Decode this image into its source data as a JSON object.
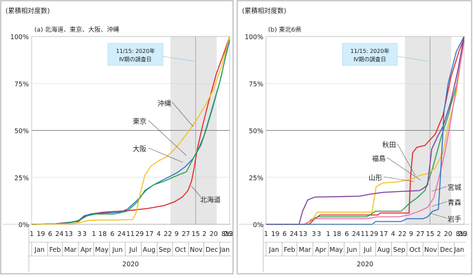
{
  "charts": [
    {
      "ylabel": "(累積相対度数)",
      "title": "(a) 北海道、東京、大阪、沖縄",
      "ticks_y": [
        "0%",
        "25%",
        "50%",
        "75%",
        "100%"
      ],
      "tick_labels_x": [
        "1",
        "19",
        "6",
        "24",
        "13",
        "3",
        "3",
        "1",
        "18",
        "6",
        "24",
        "11",
        "29",
        "17",
        "4",
        "22",
        "9",
        "27",
        "15",
        "2",
        "20",
        "8",
        "26",
        "13"
      ],
      "month_labels": [
        "Jan",
        "Feb",
        "Mar",
        "Apr",
        "May",
        "Jun",
        "Jul",
        "Aug",
        "Sep",
        "Oct",
        "Nov",
        "Dec",
        "Jan"
      ],
      "year_label": "2020",
      "callout_lines": [
        "11/15: 2020年",
        "Ⅳ期の調査日"
      ],
      "series_labels": [
        "沖縄",
        "東京",
        "大阪",
        "北海道"
      ]
    },
    {
      "ylabel": "(累積相対度数)",
      "title": "(b) 東北6県",
      "ticks_y": [
        "0%",
        "25%",
        "50%",
        "75%",
        "100%"
      ],
      "tick_labels_x": [
        "1",
        "19",
        "6",
        "24",
        "13",
        "3",
        "3",
        "1",
        "18",
        "6",
        "24",
        "11",
        "29",
        "17",
        "4",
        "22",
        "9",
        "27",
        "15",
        "2",
        "20",
        "8",
        "26",
        "13"
      ],
      "month_labels": [
        "Jan",
        "Feb",
        "Mar",
        "Apr",
        "May",
        "Jun",
        "Jul",
        "Aug",
        "Sep",
        "Oct",
        "Nov",
        "Dec",
        "Jan"
      ],
      "year_label": "2020",
      "callout_lines": [
        "11/15: 2020年",
        "Ⅳ期の調査日"
      ],
      "series_labels": [
        "秋田",
        "福島",
        "山形",
        "宮城",
        "青森",
        "岩手"
      ]
    }
  ],
  "chart_data": [
    {
      "type": "line",
      "title": "(a) 北海道、東京、大阪、沖縄",
      "ylabel": "(累積相対度数)",
      "ylim": [
        0,
        100
      ],
      "xlim": [
        "2020-01-01",
        "2021-01-20"
      ],
      "shaded_period": [
        "2020-09-27",
        "2020-12-26"
      ],
      "vline": "2020-11-15",
      "hline": 50,
      "series": [
        {
          "name": "北海道",
          "color": "#e02020",
          "points": [
            [
              "2020-01-01",
              0
            ],
            [
              "2020-02-15",
              0.3
            ],
            [
              "2020-03-10",
              1
            ],
            [
              "2020-04-01",
              1.5
            ],
            [
              "2020-04-12",
              4
            ],
            [
              "2020-04-25",
              5.5
            ],
            [
              "2020-05-20",
              6.5
            ],
            [
              "2020-06-20",
              7
            ],
            [
              "2020-07-15",
              7.5
            ],
            [
              "2020-08-15",
              8.5
            ],
            [
              "2020-09-15",
              10
            ],
            [
              "2020-10-05",
              12
            ],
            [
              "2020-10-20",
              14.5
            ],
            [
              "2020-10-31",
              18
            ],
            [
              "2020-11-07",
              23
            ],
            [
              "2020-11-12",
              30
            ],
            [
              "2020-11-18",
              40
            ],
            [
              "2020-11-28",
              52
            ],
            [
              "2020-12-10",
              65
            ],
            [
              "2020-12-25",
              80
            ],
            [
              "2021-01-10",
              92
            ],
            [
              "2021-01-20",
              100
            ]
          ]
        },
        {
          "name": "東京",
          "color": "#2f6fc8",
          "points": [
            [
              "2020-01-01",
              0
            ],
            [
              "2020-02-20",
              0.3
            ],
            [
              "2020-03-15",
              1
            ],
            [
              "2020-04-01",
              2
            ],
            [
              "2020-04-12",
              4.5
            ],
            [
              "2020-04-25",
              5.5
            ],
            [
              "2020-05-20",
              6
            ],
            [
              "2020-06-20",
              6.5
            ],
            [
              "2020-07-05",
              8
            ],
            [
              "2020-07-25",
              13
            ],
            [
              "2020-08-10",
              18
            ],
            [
              "2020-08-25",
              21
            ],
            [
              "2020-09-15",
              24
            ],
            [
              "2020-10-10",
              27.5
            ],
            [
              "2020-10-25",
              30.5
            ],
            [
              "2020-11-10",
              35
            ],
            [
              "2020-11-20",
              40
            ],
            [
              "2020-12-01",
              47
            ],
            [
              "2020-12-15",
              60
            ],
            [
              "2021-01-01",
              76
            ],
            [
              "2021-01-12",
              89
            ],
            [
              "2021-01-20",
              98
            ]
          ]
        },
        {
          "name": "大阪",
          "color": "#22a050",
          "points": [
            [
              "2020-01-01",
              0
            ],
            [
              "2020-02-25",
              0.3
            ],
            [
              "2020-03-20",
              1
            ],
            [
              "2020-04-05",
              2.5
            ],
            [
              "2020-04-18",
              4.5
            ],
            [
              "2020-05-05",
              5.5
            ],
            [
              "2020-06-10",
              5.5
            ],
            [
              "2020-07-05",
              7
            ],
            [
              "2020-07-25",
              12
            ],
            [
              "2020-08-08",
              18
            ],
            [
              "2020-08-25",
              21
            ],
            [
              "2020-09-15",
              23
            ],
            [
              "2020-10-10",
              26
            ],
            [
              "2020-10-28",
              28
            ],
            [
              "2020-11-12",
              36
            ],
            [
              "2020-11-25",
              42
            ],
            [
              "2020-12-05",
              50
            ],
            [
              "2020-12-18",
              62
            ],
            [
              "2021-01-03",
              78
            ],
            [
              "2021-01-14",
              92
            ],
            [
              "2021-01-20",
              100
            ]
          ]
        },
        {
          "name": "沖縄",
          "color": "#f2c020",
          "points": [
            [
              "2020-01-01",
              0
            ],
            [
              "2020-03-20",
              0.3
            ],
            [
              "2020-04-05",
              1
            ],
            [
              "2020-04-20",
              2
            ],
            [
              "2020-05-15",
              2.3
            ],
            [
              "2020-06-15",
              2.3
            ],
            [
              "2020-07-15",
              2.5
            ],
            [
              "2020-07-22",
              6
            ],
            [
              "2020-07-30",
              16
            ],
            [
              "2020-08-08",
              26
            ],
            [
              "2020-08-20",
              31
            ],
            [
              "2020-09-05",
              34
            ],
            [
              "2020-09-20",
              36
            ],
            [
              "2020-10-05",
              40
            ],
            [
              "2020-10-20",
              45
            ],
            [
              "2020-11-05",
              51
            ],
            [
              "2020-11-20",
              57
            ],
            [
              "2020-12-05",
              64
            ],
            [
              "2020-12-20",
              72
            ],
            [
              "2021-01-05",
              85
            ],
            [
              "2021-01-15",
              95
            ],
            [
              "2021-01-20",
              100
            ]
          ]
        }
      ]
    },
    {
      "type": "line",
      "title": "(b) 東北6県",
      "ylabel": "(累積相対度数)",
      "ylim": [
        0,
        100
      ],
      "xlim": [
        "2020-01-01",
        "2021-01-20"
      ],
      "shaded_period": [
        "2020-09-27",
        "2020-12-26"
      ],
      "vline": "2020-11-15",
      "hline": 50,
      "series": [
        {
          "name": "秋田",
          "color": "#e02020",
          "points": [
            [
              "2020-01-01",
              0
            ],
            [
              "2020-03-25",
              0
            ],
            [
              "2020-04-05",
              3
            ],
            [
              "2020-04-15",
              5
            ],
            [
              "2020-08-05",
              5
            ],
            [
              "2020-08-10",
              6
            ],
            [
              "2020-10-05",
              6
            ],
            [
              "2020-10-08",
              25
            ],
            [
              "2020-10-12",
              38
            ],
            [
              "2020-10-20",
              41
            ],
            [
              "2020-11-05",
              42
            ],
            [
              "2020-11-25",
              48
            ],
            [
              "2020-12-10",
              58
            ],
            [
              "2020-12-25",
              78
            ],
            [
              "2021-01-10",
              92
            ],
            [
              "2021-01-20",
              99
            ]
          ]
        },
        {
          "name": "福島",
          "color": "#22a050",
          "points": [
            [
              "2020-01-01",
              0
            ],
            [
              "2020-03-20",
              0
            ],
            [
              "2020-03-28",
              2.5
            ],
            [
              "2020-04-10",
              4
            ],
            [
              "2020-07-15",
              4
            ],
            [
              "2020-08-01",
              7
            ],
            [
              "2020-09-20",
              7
            ],
            [
              "2020-10-05",
              11
            ],
            [
              "2020-10-20",
              14
            ],
            [
              "2020-11-05",
              18
            ],
            [
              "2020-11-20",
              30
            ],
            [
              "2020-12-05",
              45
            ],
            [
              "2020-12-20",
              58
            ],
            [
              "2021-01-05",
              74
            ],
            [
              "2021-01-14",
              88
            ],
            [
              "2021-01-20",
              98
            ]
          ]
        },
        {
          "name": "山形",
          "color": "#f2c020",
          "points": [
            [
              "2020-01-01",
              0
            ],
            [
              "2020-03-20",
              0
            ],
            [
              "2020-04-01",
              3
            ],
            [
              "2020-04-10",
              6.5
            ],
            [
              "2020-07-25",
              6.5
            ],
            [
              "2020-08-02",
              20
            ],
            [
              "2020-08-15",
              22
            ],
            [
              "2020-09-10",
              22.5
            ],
            [
              "2020-10-10",
              24
            ],
            [
              "2020-10-25",
              26
            ],
            [
              "2020-11-10",
              27
            ],
            [
              "2020-11-25",
              30
            ],
            [
              "2020-12-10",
              38
            ],
            [
              "2020-12-20",
              52
            ],
            [
              "2021-01-05",
              70
            ],
            [
              "2021-01-14",
              88
            ],
            [
              "2021-01-20",
              97
            ]
          ]
        },
        {
          "name": "宮城",
          "color": "#7a3a9a",
          "points": [
            [
              "2020-01-01",
              0
            ],
            [
              "2020-03-05",
              0
            ],
            [
              "2020-03-12",
              7
            ],
            [
              "2020-03-22",
              13
            ],
            [
              "2020-04-05",
              14.5
            ],
            [
              "2020-07-01",
              15
            ],
            [
              "2020-07-20",
              16
            ],
            [
              "2020-08-15",
              17
            ],
            [
              "2020-09-20",
              17.5
            ],
            [
              "2020-10-25",
              18
            ],
            [
              "2020-11-01",
              19
            ],
            [
              "2020-11-10",
              21
            ],
            [
              "2020-11-18",
              40
            ],
            [
              "2020-11-30",
              47
            ],
            [
              "2020-12-10",
              52
            ],
            [
              "2020-12-25",
              65
            ],
            [
              "2021-01-08",
              82
            ],
            [
              "2021-01-20",
              100
            ]
          ]
        },
        {
          "name": "青森",
          "color": "#f06aaa",
          "points": [
            [
              "2020-01-01",
              0
            ],
            [
              "2020-03-15",
              0
            ],
            [
              "2020-03-25",
              1.5
            ],
            [
              "2020-04-05",
              3
            ],
            [
              "2020-07-15",
              3
            ],
            [
              "2020-08-05",
              4
            ],
            [
              "2020-09-15",
              4
            ],
            [
              "2020-10-05",
              5
            ],
            [
              "2020-10-25",
              7
            ],
            [
              "2020-11-10",
              9
            ],
            [
              "2020-11-22",
              14
            ],
            [
              "2020-12-05",
              28
            ],
            [
              "2020-12-15",
              40
            ],
            [
              "2020-12-25",
              55
            ],
            [
              "2021-01-08",
              78
            ],
            [
              "2021-01-20",
              97
            ]
          ]
        },
        {
          "name": "岩手",
          "color": "#2f6fc8",
          "points": [
            [
              "2020-01-01",
              0
            ],
            [
              "2020-07-25",
              0
            ],
            [
              "2020-08-01",
              1.5
            ],
            [
              "2020-09-20",
              1.5
            ],
            [
              "2020-10-01",
              3
            ],
            [
              "2020-11-01",
              3
            ],
            [
              "2020-11-10",
              4
            ],
            [
              "2020-11-20",
              7
            ],
            [
              "2020-12-01",
              8
            ],
            [
              "2020-12-05",
              25
            ],
            [
              "2020-12-12",
              60
            ],
            [
              "2020-12-20",
              75
            ],
            [
              "2021-01-05",
              92
            ],
            [
              "2021-01-20",
              100
            ]
          ]
        }
      ]
    }
  ]
}
